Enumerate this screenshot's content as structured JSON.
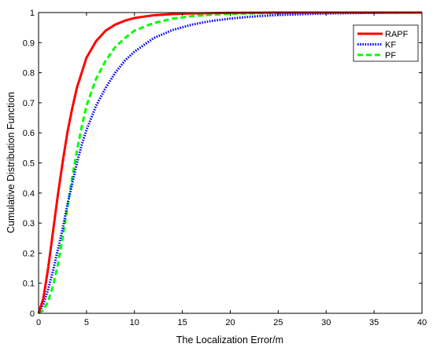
{
  "chart_data": {
    "type": "line",
    "xlabel": "The Localization Error/m",
    "ylabel": "Cumulative Distribution Function",
    "xlim": [
      0,
      40
    ],
    "ylim": [
      0,
      1
    ],
    "xticks": [
      0,
      5,
      10,
      15,
      20,
      25,
      30,
      35,
      40
    ],
    "yticks": [
      0,
      0.1,
      0.2,
      0.3,
      0.4,
      0.5,
      0.6,
      0.7,
      0.8,
      0.9,
      1
    ],
    "xtick_labels": [
      "0",
      "5",
      "10",
      "15",
      "20",
      "25",
      "30",
      "35",
      "40"
    ],
    "ytick_labels": [
      "0",
      "0.1",
      "0.2",
      "0.3",
      "0.4",
      "0.5",
      "0.6",
      "0.7",
      "0.8",
      "0.9",
      "1"
    ],
    "grid": false,
    "legend_position": "top-right",
    "series": [
      {
        "name": "RAPF",
        "color": "#ff0000",
        "style": "solid",
        "x": [
          0,
          0.5,
          1,
          1.5,
          2,
          2.5,
          3,
          3.5,
          4,
          4.5,
          5,
          6,
          7,
          8,
          9,
          10,
          12,
          14,
          16,
          18,
          20,
          25,
          30,
          35,
          40
        ],
        "y": [
          0,
          0.05,
          0.15,
          0.27,
          0.39,
          0.5,
          0.6,
          0.68,
          0.75,
          0.8,
          0.85,
          0.905,
          0.94,
          0.96,
          0.973,
          0.982,
          0.991,
          0.995,
          0.997,
          0.998,
          0.999,
          1.0,
          1.0,
          1.0,
          1.0
        ]
      },
      {
        "name": "KF",
        "color": "#0000ff",
        "style": "dotted",
        "x": [
          0,
          0.5,
          1,
          1.5,
          2,
          2.5,
          3,
          3.5,
          4,
          4.5,
          5,
          6,
          7,
          8,
          9,
          10,
          12,
          14,
          16,
          18,
          20,
          22,
          25,
          30,
          35,
          40
        ],
        "y": [
          0,
          0.03,
          0.08,
          0.14,
          0.21,
          0.28,
          0.36,
          0.43,
          0.5,
          0.56,
          0.61,
          0.69,
          0.75,
          0.8,
          0.84,
          0.87,
          0.915,
          0.942,
          0.96,
          0.972,
          0.98,
          0.986,
          0.992,
          0.997,
          0.999,
          1.0
        ]
      },
      {
        "name": "PF",
        "color": "#00ff00",
        "style": "dashed",
        "x": [
          0,
          0.5,
          1,
          1.5,
          2,
          2.5,
          3,
          3.5,
          4,
          4.5,
          5,
          6,
          7,
          8,
          9,
          10,
          12,
          14,
          16,
          18,
          20,
          25,
          30,
          35,
          40
        ],
        "y": [
          0,
          0.01,
          0.04,
          0.09,
          0.16,
          0.25,
          0.35,
          0.45,
          0.54,
          0.62,
          0.69,
          0.78,
          0.84,
          0.885,
          0.915,
          0.94,
          0.965,
          0.98,
          0.988,
          0.993,
          0.996,
          0.999,
          1.0,
          1.0,
          1.0
        ]
      }
    ]
  }
}
